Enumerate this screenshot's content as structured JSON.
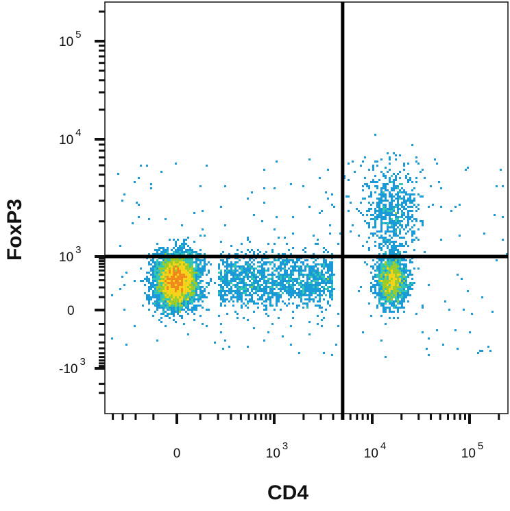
{
  "chart_data": {
    "type": "scatter",
    "plot_kind": "flow cytometry density dot plot with quadrant gates",
    "xlabel": "CD4",
    "ylabel": "FoxP3",
    "x_scale": "biexponential (logicle)",
    "y_scale": "biexponential (logicle)",
    "x_ticks": [
      {
        "label": "0",
        "value": 0
      },
      {
        "label": "10",
        "exp": "3",
        "value": 1000
      },
      {
        "label": "10",
        "exp": "4",
        "value": 10000
      },
      {
        "label": "10",
        "exp": "5",
        "value": 100000
      }
    ],
    "y_ticks": [
      {
        "label": "-10",
        "exp": "3",
        "value": -1000
      },
      {
        "label": "0",
        "value": 0
      },
      {
        "label": "10",
        "exp": "3",
        "value": 1000
      },
      {
        "label": "10",
        "exp": "4",
        "value": 10000
      },
      {
        "label": "10",
        "exp": "5",
        "value": 100000
      }
    ],
    "quadrant_gates": {
      "x": 5000,
      "y": 1000
    },
    "populations": [
      {
        "description": "CD4- FoxP3- cluster",
        "x_center": 0,
        "y_center": 300,
        "density": "highest",
        "color": "#e8201a"
      },
      {
        "description": "CD4+ FoxP3- cluster",
        "x_center": 16000,
        "y_center": 300,
        "density": "medium",
        "color": "#9ccc2c"
      },
      {
        "description": "CD4+ FoxP3+ population",
        "x_center": 16000,
        "y_center": 2500,
        "density": "low",
        "color": "#2b3fb6"
      },
      {
        "description": "CD4 low-to-intermediate smear",
        "x_range": [
          200,
          4000
        ],
        "y_center": 300,
        "density": "low",
        "color": "#2b3fb6"
      }
    ],
    "density_colors": [
      "#2b3fb6",
      "#1a9bd7",
      "#33c6b5",
      "#9ccc2c",
      "#f5d31a",
      "#f08a1c",
      "#e8201a"
    ],
    "grid": false,
    "legend": "none"
  }
}
